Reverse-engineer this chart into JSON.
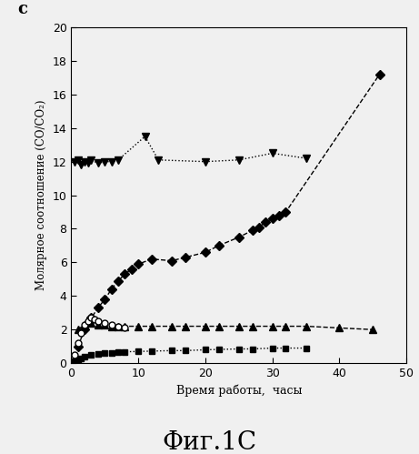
{
  "title_label": "c",
  "xlabel": "Время работы,  часы",
  "ylabel": "Молярное соотношение (CO/CO₂)",
  "fig_caption": "Фиг.1С",
  "xlim": [
    0,
    50
  ],
  "ylim": [
    0,
    20
  ],
  "xticks": [
    0,
    10,
    20,
    30,
    40,
    50
  ],
  "yticks": [
    0,
    2,
    4,
    6,
    8,
    10,
    12,
    14,
    16,
    18,
    20
  ],
  "series_down_triangle": {
    "x": [
      0.5,
      1.0,
      1.5,
      2.0,
      2.5,
      3.0,
      4.0,
      5.0,
      6.0,
      7.0,
      11.0,
      13.0,
      20.0,
      25.0,
      30.0,
      35.0
    ],
    "y": [
      12.0,
      12.1,
      11.8,
      12.0,
      11.9,
      12.1,
      11.9,
      12.0,
      12.0,
      12.1,
      13.5,
      12.1,
      12.0,
      12.1,
      12.5,
      12.2
    ],
    "marker": "v",
    "color": "#000000",
    "linestyle": "dotted",
    "markersize": 6,
    "linewidth": 1.0
  },
  "series_diamond": {
    "x": [
      1.0,
      2.0,
      3.0,
      4.0,
      5.0,
      6.0,
      7.0,
      8.0,
      9.0,
      10.0,
      12.0,
      15.0,
      17.0,
      20.0,
      22.0,
      25.0,
      27.0,
      28.0,
      29.0,
      30.0,
      31.0,
      32.0,
      46.0
    ],
    "y": [
      1.0,
      2.0,
      2.7,
      3.3,
      3.8,
      4.4,
      4.9,
      5.3,
      5.6,
      5.9,
      6.2,
      6.1,
      6.3,
      6.6,
      7.0,
      7.5,
      7.9,
      8.1,
      8.4,
      8.6,
      8.8,
      9.0,
      17.2
    ],
    "marker": "D",
    "color": "#000000",
    "linestyle": "dashed",
    "markersize": 5,
    "linewidth": 1.0
  },
  "series_up_triangle": {
    "x": [
      1.0,
      2.0,
      3.0,
      4.0,
      5.0,
      6.0,
      7.0,
      8.0,
      10.0,
      12.0,
      15.0,
      17.0,
      20.0,
      22.0,
      25.0,
      27.0,
      30.0,
      32.0,
      35.0,
      40.0,
      45.0
    ],
    "y": [
      2.0,
      2.3,
      2.4,
      2.3,
      2.3,
      2.2,
      2.2,
      2.2,
      2.2,
      2.2,
      2.2,
      2.2,
      2.2,
      2.2,
      2.2,
      2.2,
      2.2,
      2.2,
      2.2,
      2.1,
      2.0
    ],
    "marker": "^",
    "color": "#000000",
    "linestyle": "dashed",
    "markersize": 6,
    "linewidth": 1.0
  },
  "series_square": {
    "x": [
      0.5,
      1.0,
      1.5,
      2.0,
      3.0,
      4.0,
      5.0,
      6.0,
      7.0,
      8.0,
      10.0,
      12.0,
      15.0,
      17.0,
      20.0,
      22.0,
      25.0,
      27.0,
      30.0,
      32.0,
      35.0
    ],
    "y": [
      0.1,
      0.2,
      0.3,
      0.4,
      0.5,
      0.55,
      0.6,
      0.62,
      0.65,
      0.68,
      0.7,
      0.72,
      0.75,
      0.75,
      0.8,
      0.82,
      0.85,
      0.85,
      0.9,
      0.9,
      0.9
    ],
    "marker": "s",
    "color": "#000000",
    "linestyle": "dotted",
    "markersize": 5,
    "linewidth": 1.0
  },
  "series_open_circle": {
    "x": [
      0.5,
      1.0,
      1.5,
      2.0,
      2.5,
      3.0,
      3.5,
      4.0,
      5.0,
      6.0,
      7.0,
      8.0
    ],
    "y": [
      0.5,
      1.2,
      1.8,
      2.3,
      2.5,
      2.7,
      2.6,
      2.5,
      2.4,
      2.3,
      2.2,
      2.1
    ],
    "marker": "o",
    "color": "#000000",
    "linestyle": "none",
    "markersize": 5,
    "linewidth": 1.0,
    "markerfacecolor": "white"
  },
  "background_color": "#f0f0f0",
  "font_family": "DejaVu Serif"
}
